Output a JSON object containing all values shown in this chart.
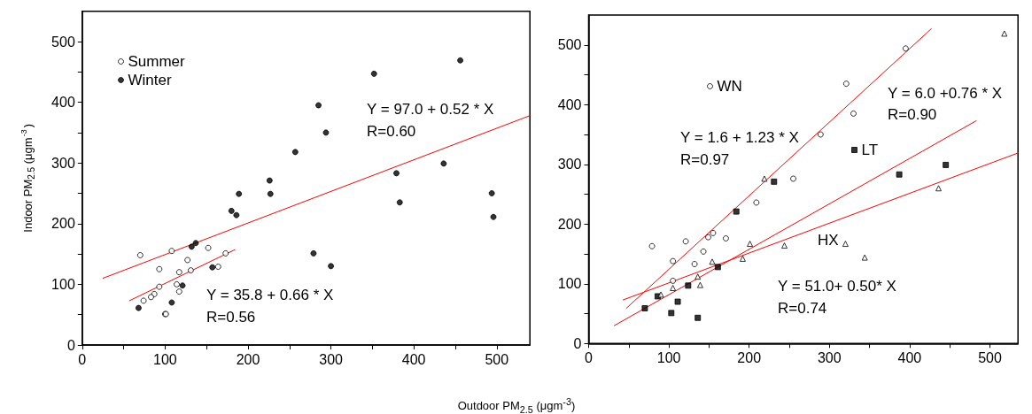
{
  "chart_data": [
    {
      "type": "scatter",
      "xlabel": "Outdoor PM$_{2.5}$ (μgm$^{-3}$)",
      "ylabel": "Indoor PM$_{2.5}$ (μgm$^{-3}$)",
      "xlim": [
        0,
        540
      ],
      "ylim": [
        0,
        550
      ],
      "xticks": [
        0,
        {
          "value": 50,
          "label": null
        },
        100,
        {
          "value": 150,
          "label": null
        },
        200,
        {
          "value": 250,
          "label": null
        },
        300,
        {
          "value": 350,
          "label": null
        },
        400,
        {
          "value": 450,
          "label": null
        },
        500
      ],
      "yticks": [
        0,
        {
          "value": 50,
          "label": null
        },
        100,
        {
          "value": 150,
          "label": null
        },
        200,
        {
          "value": 250,
          "label": null
        },
        300,
        {
          "value": 350,
          "label": null
        },
        400,
        {
          "value": 450,
          "label": null
        },
        500
      ],
      "legend": "top left",
      "annotations": [
        "Y = 97.0 + 0.52 * X",
        "R=0.60",
        "Y = 35.8 + 0.66 * X",
        "R=0.56"
      ],
      "series": [
        {
          "name": "Summer",
          "color": "#ffffff",
          "marker": "circle",
          "x": [
            70,
            108,
            152,
            173,
            93,
            127,
            117,
            131,
            164,
            114,
            93,
            117,
            87,
            83,
            74,
            100,
            101
          ],
          "values": [
            148,
            155,
            160,
            151,
            125,
            140,
            120,
            123,
            129,
            100,
            96,
            88,
            84,
            79,
            73,
            51,
            51
          ]
        },
        {
          "name": "Winter",
          "color": "#000000",
          "marker": "circle",
          "x": [
            68,
            108,
            121,
            132,
            137,
            157,
            180,
            186,
            189,
            226,
            227,
            257,
            285,
            294,
            352,
            456,
            379,
            436,
            383,
            494,
            496,
            279,
            300
          ],
          "values": [
            61,
            70,
            98,
            162,
            168,
            128,
            221,
            214,
            249,
            271,
            249,
            318,
            395,
            350,
            447,
            469,
            283,
            299,
            235,
            250,
            211,
            151,
            130
          ]
        },
        {
          "type": "line",
          "color": "#ff0000",
          "x": [
            25,
            540
          ],
          "values": [
            110,
            378
          ]
        },
        {
          "type": "line",
          "color": "#ff0000",
          "x": [
            57,
            184
          ],
          "values": [
            73,
            157
          ]
        }
      ]
    },
    {
      "type": "scatter",
      "xlim": [
        0,
        535
      ],
      "ylim": [
        0,
        550
      ],
      "xticks": [
        0,
        {
          "value": 50,
          "label": null
        },
        100,
        {
          "value": 150,
          "label": null
        },
        200,
        {
          "value": 250,
          "label": null
        },
        300,
        {
          "value": 350,
          "label": null
        },
        400,
        {
          "value": 450,
          "label": null
        },
        500
      ],
      "yticks": [
        0,
        {
          "value": 50,
          "label": null
        },
        100,
        {
          "value": 150,
          "label": null
        },
        200,
        {
          "value": 250,
          "label": null
        },
        300,
        {
          "value": 350,
          "label": null
        },
        400,
        {
          "value": 450,
          "label": null
        },
        500
      ],
      "legend": "top left",
      "annotations": [
        "Y = 1.6 + 1.23 * X",
        "R=0.97",
        "Y = 6.0 +0.76 * X",
        "R=0.90",
        "Y = 51.0+ 0.50* X",
        "R=0.74"
      ],
      "series": [
        {
          "name": "WN",
          "color": "#ffffff",
          "marker": "circle",
          "x": [
            79,
            121,
            105,
            105,
            132,
            143,
            149,
            155,
            171,
            209,
            255,
            289,
            321,
            330,
            395
          ],
          "values": [
            163,
            171,
            138,
            105,
            133,
            154,
            178,
            185,
            176,
            236,
            276,
            350,
            435,
            385,
            494
          ]
        },
        {
          "name": "LT",
          "color": "#000000",
          "marker": "square",
          "x": [
            70,
            86,
            103,
            111,
            124,
            136,
            161,
            184,
            231,
            387,
            445
          ],
          "values": [
            59,
            79,
            51,
            70,
            97,
            43,
            128,
            221,
            271,
            283,
            299
          ]
        },
        {
          "name": "HX",
          "color": "#ffffff",
          "marker": "triangle",
          "x": [
            90,
            105,
            136,
            139,
            154,
            192,
            201,
            219,
            244,
            320,
            344,
            436,
            518
          ],
          "values": [
            82,
            93,
            112,
            98,
            137,
            142,
            167,
            276,
            164,
            167,
            144,
            260,
            519
          ]
        },
        {
          "type": "line",
          "color": "#ff0000",
          "x": [
            47,
            427
          ],
          "values": [
            59,
            527
          ]
        },
        {
          "type": "line",
          "color": "#ff0000",
          "x": [
            32,
            483
          ],
          "values": [
            30,
            373
          ]
        },
        {
          "type": "line",
          "color": "#ff0000",
          "x": [
            43,
            535
          ],
          "values": [
            73,
            319
          ]
        }
      ]
    }
  ]
}
